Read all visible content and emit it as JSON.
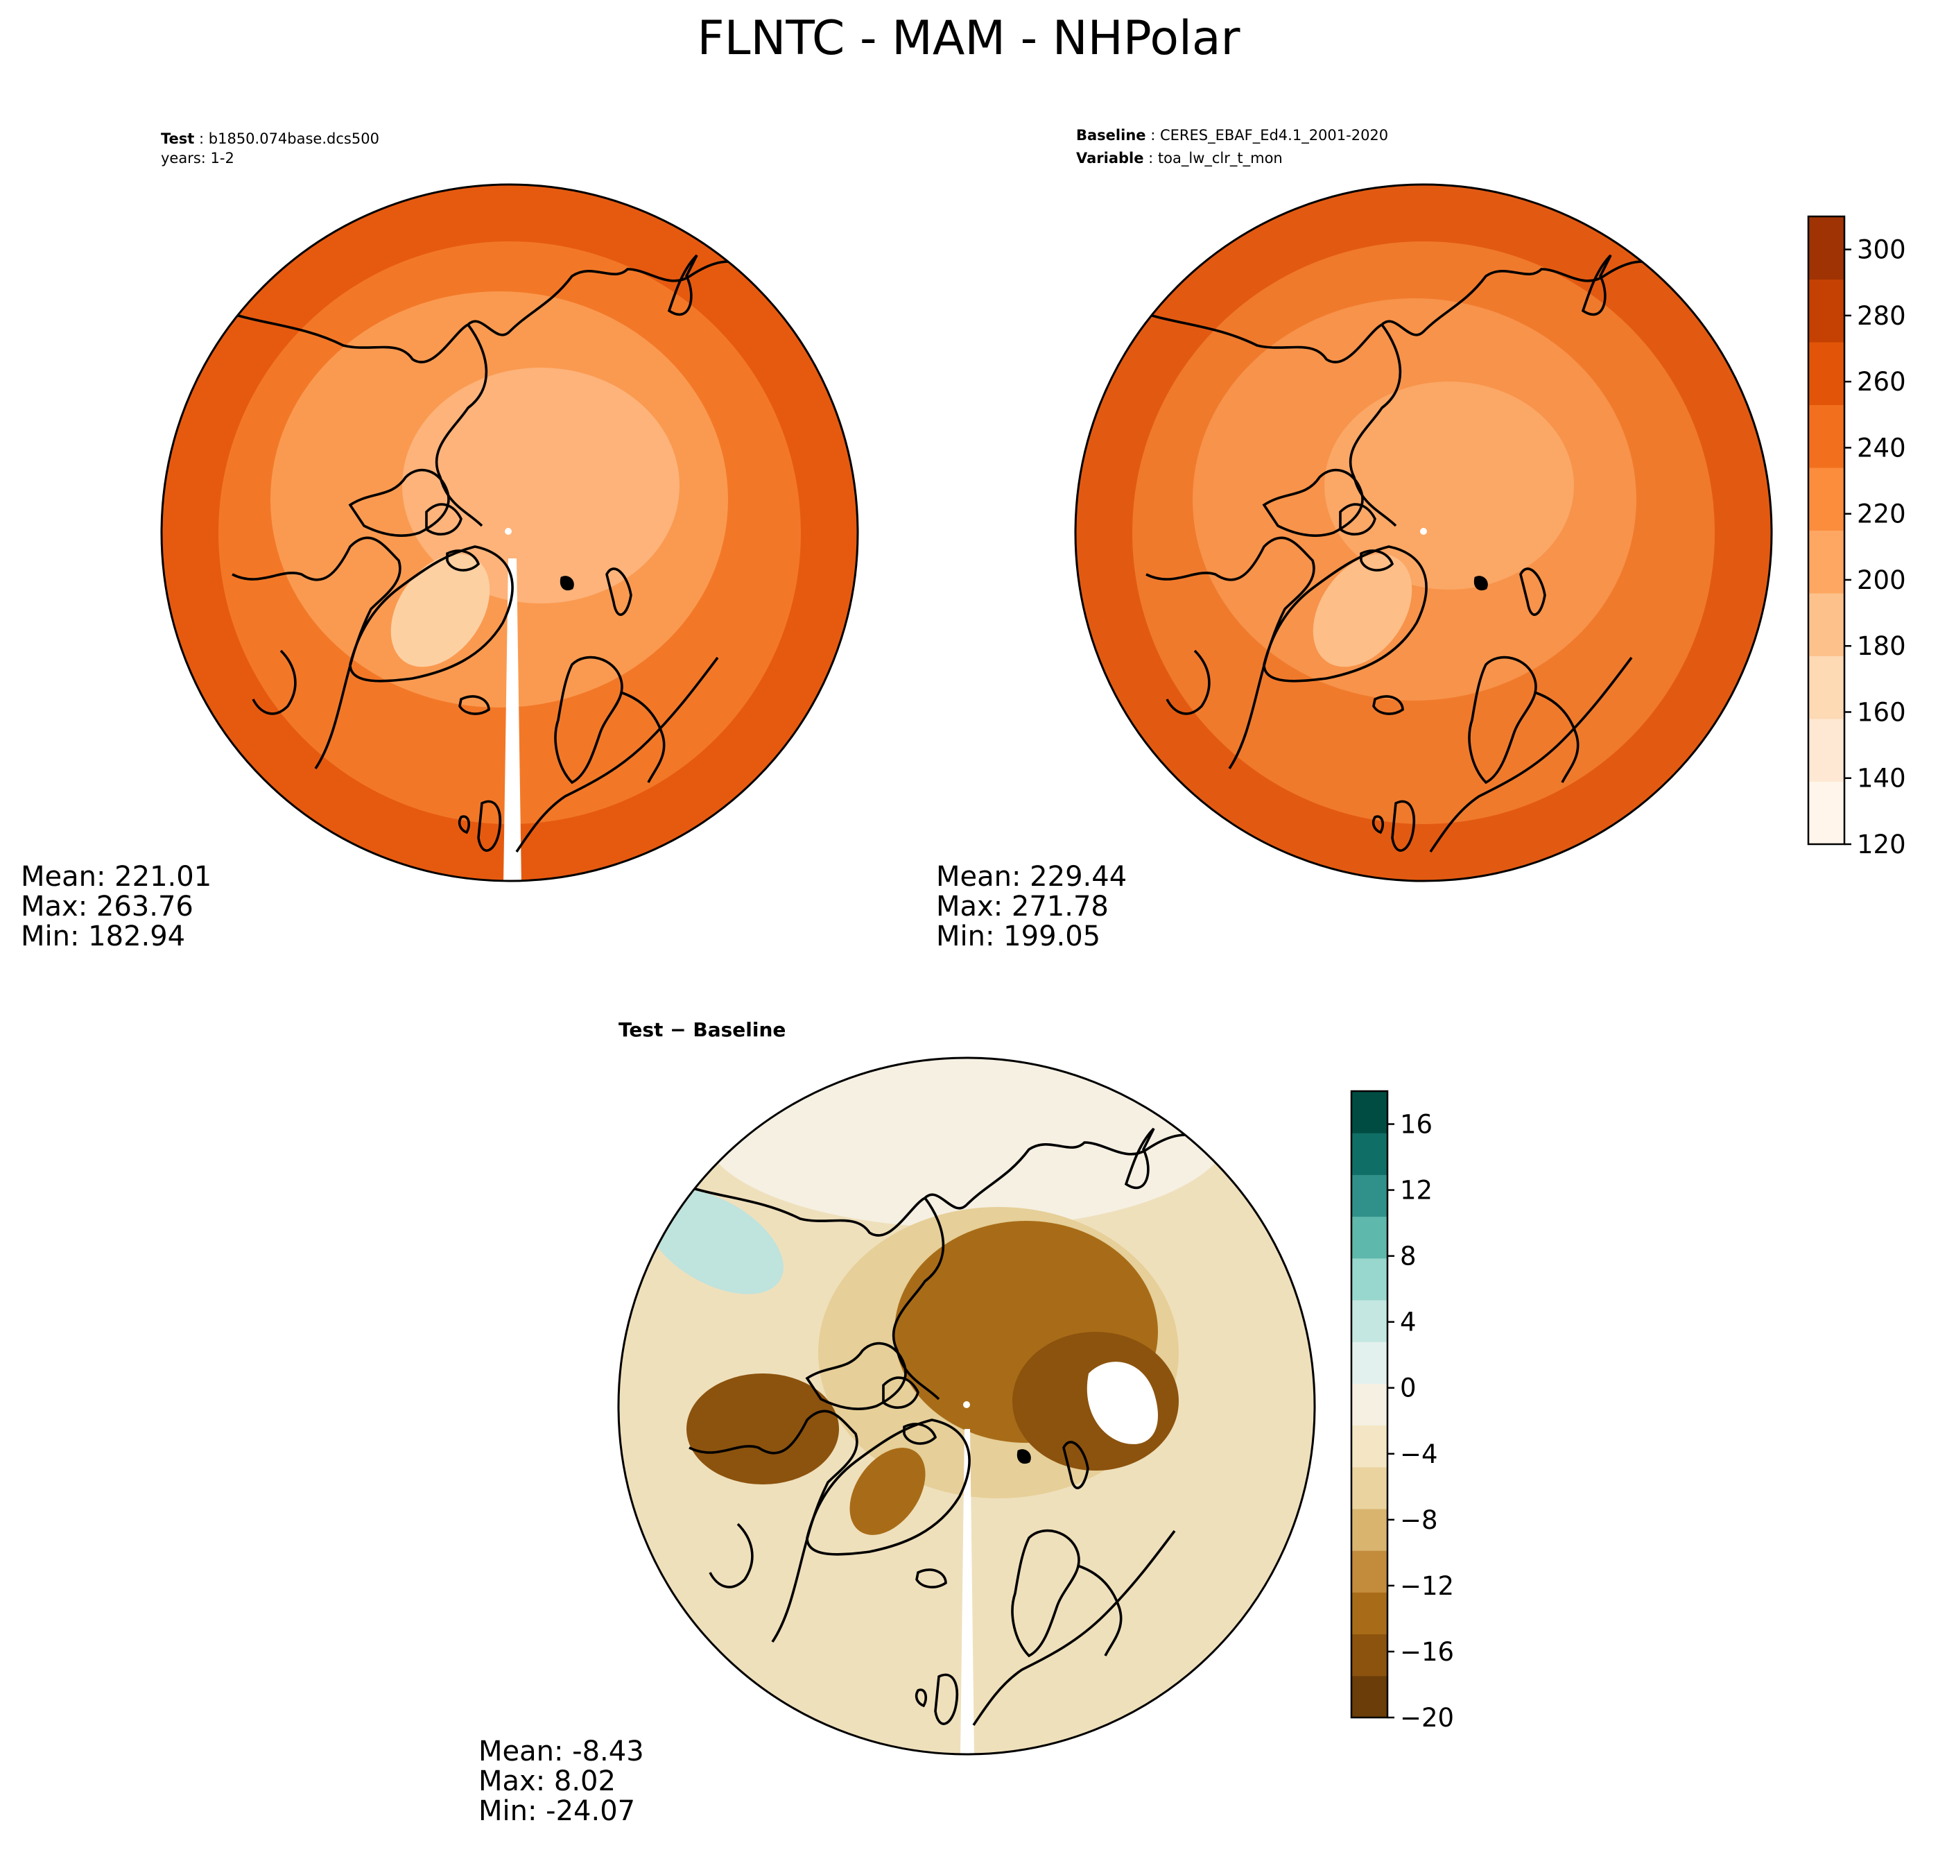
{
  "figure": {
    "title": "FLNTC - MAM - NHPolar"
  },
  "panels": {
    "test": {
      "label_bold": "Test",
      "label_value": "b1850.074base.dcs500",
      "line2": "years: 1-2",
      "stats": {
        "mean": "Mean: 221.01",
        "max": "Max: 263.76",
        "min": "Min: 182.94"
      }
    },
    "baseline": {
      "label_bold": "Baseline",
      "label_value": "CERES_EBAF_Ed4.1_2001-2020",
      "var_bold": "Variable",
      "var_value": "toa_lw_clr_t_mon",
      "stats": {
        "mean": "Mean: 229.44",
        "max": "Max: 271.78",
        "min": "Min: 199.05"
      }
    },
    "diff": {
      "label": "Test − Baseline",
      "stats": {
        "mean": "Mean: -8.43",
        "max": "Max:  8.02",
        "min": "Min: -24.07"
      }
    }
  },
  "colorbars": {
    "main": {
      "ticks": [
        "120",
        "140",
        "160",
        "180",
        "200",
        "220",
        "240",
        "260",
        "280",
        "300"
      ],
      "colors": [
        "#fff5eb",
        "#fee8d3",
        "#fdd9b4",
        "#fdc28c",
        "#fda762",
        "#fb8d3d",
        "#f2701d",
        "#e25508",
        "#c44103",
        "#9f3303"
      ]
    },
    "diff": {
      "ticks": [
        "−20",
        "−16",
        "−12",
        "−8",
        "−4",
        "0",
        "4",
        "8",
        "12",
        "16"
      ],
      "colors": [
        "#6b3d08",
        "#8c530e",
        "#a86c18",
        "#c38c3c",
        "#d9b46f",
        "#ead39f",
        "#f4e6c4",
        "#f5f0e2",
        "#e3f1ee",
        "#c4e7e1",
        "#98d7cd",
        "#5fb8ac",
        "#2f918a",
        "#0f6f66",
        "#004c42"
      ]
    }
  },
  "map_colors": {
    "test": {
      "outer": "#e65a10",
      "mid": "#f27828",
      "inner": "#fa9a50",
      "polar": "#fdb37a",
      "greenland": "#fdd0a2"
    },
    "baseline": {
      "outer": "#e25a12",
      "mid": "#f07a2c",
      "inner": "#f7934a",
      "polar": "#fba766",
      "greenland": "#fdbe88"
    },
    "diff": {
      "base": "#efe0bc",
      "dark": "#a86c18",
      "darker": "#8c530e",
      "light": "#e6cf98",
      "teal": "#bfe3dd",
      "white": "#ffffff"
    }
  }
}
